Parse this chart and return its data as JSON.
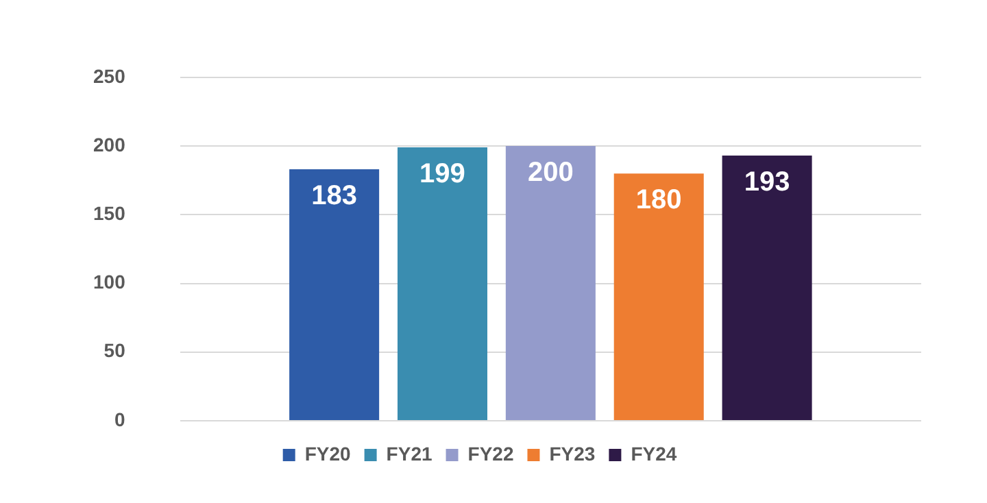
{
  "chart_data": {
    "type": "bar",
    "categories": [
      null
    ],
    "series": [
      {
        "name": "FY20",
        "color": "#2e5ca8",
        "values": [
          183
        ]
      },
      {
        "name": "FY21",
        "color": "#3a8db0",
        "values": [
          199
        ]
      },
      {
        "name": "FY22",
        "color": "#949bcb",
        "values": [
          200
        ]
      },
      {
        "name": "FY23",
        "color": "#ee7d31",
        "values": [
          180
        ]
      },
      {
        "name": "FY24",
        "color": "#2e1a47",
        "values": [
          193
        ]
      }
    ],
    "ylim": [
      0,
      250
    ],
    "yticks": [
      0,
      50,
      100,
      150,
      200,
      250
    ],
    "grid": "y",
    "legend": "bottom",
    "data_labels": true
  }
}
